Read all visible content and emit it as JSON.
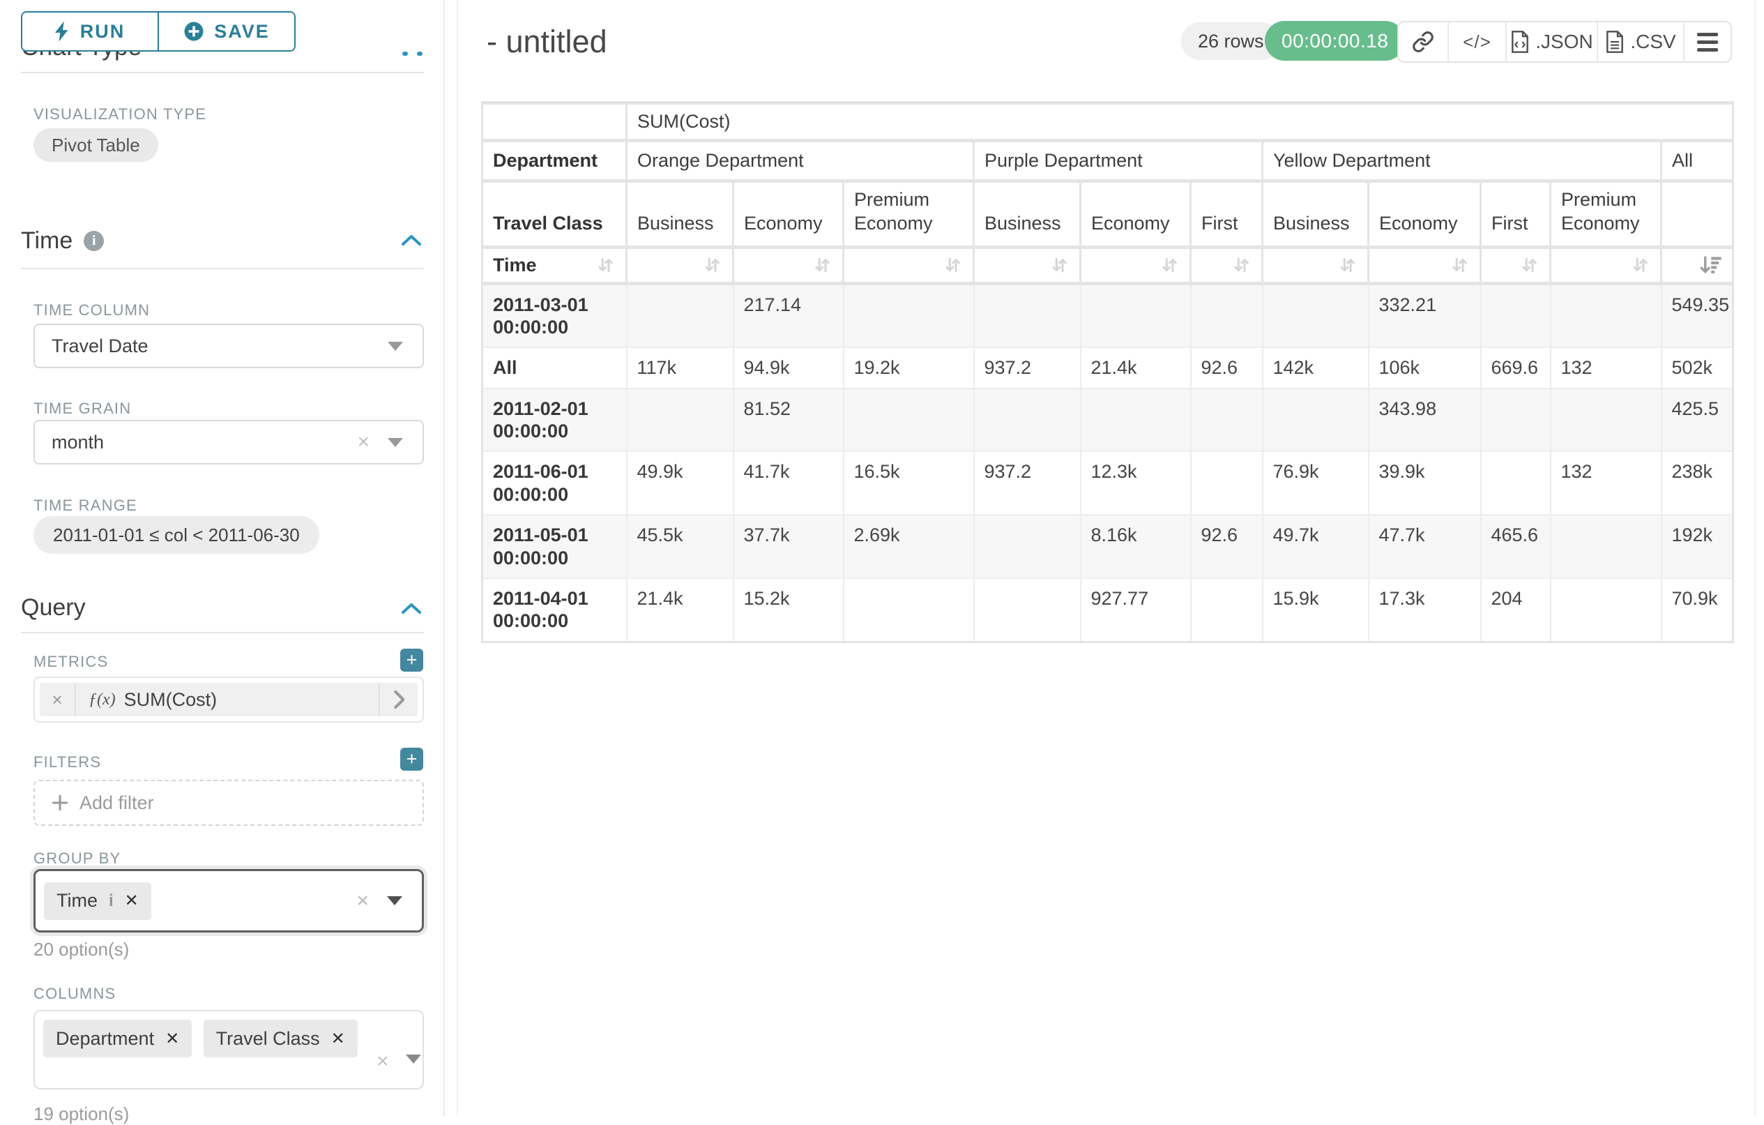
{
  "colors": {
    "accent_teal": "#2b7e98",
    "chevron_blue": "#2d93c0",
    "plus_teal": "#44889f",
    "timer_green": "#68bd8d"
  },
  "sidebar": {
    "run_label": "RUN",
    "save_label": "SAVE",
    "chart_type_heading": "Chart Type",
    "visualization": {
      "label": "VISUALIZATION TYPE",
      "value": "Pivot Table"
    },
    "time": {
      "heading": "Time",
      "time_column": {
        "label": "TIME COLUMN",
        "value": "Travel Date"
      },
      "time_grain": {
        "label": "TIME GRAIN",
        "value": "month"
      },
      "time_range": {
        "label": "TIME RANGE",
        "value": "2011-01-01 ≤ col < 2011-06-30"
      }
    },
    "query": {
      "heading": "Query",
      "metrics": {
        "label": "METRICS",
        "fx": "ƒ(x)",
        "value": "SUM(Cost)"
      },
      "filters": {
        "label": "FILTERS",
        "placeholder": "Add filter"
      },
      "group_by": {
        "label": "GROUP BY",
        "chips": [
          "Time"
        ],
        "hint": "20 option(s)"
      },
      "columns": {
        "label": "COLUMNS",
        "chips": [
          "Department",
          "Travel Class"
        ],
        "hint": "19 option(s)"
      }
    }
  },
  "header": {
    "title": "- untitled",
    "rows_badge": "26 rows",
    "timer": "00:00:00.18",
    "json_label": ".JSON",
    "csv_label": ".CSV"
  },
  "pivot": {
    "metric": "SUM(Cost)",
    "column_dimension_label": "Department",
    "class_dimension_label": "Travel Class",
    "row_dimension_label": "Time",
    "all_label": "All",
    "groups": [
      {
        "name": "Orange Department",
        "classes": [
          "Business",
          "Economy",
          "Premium Economy"
        ]
      },
      {
        "name": "Purple Department",
        "classes": [
          "Business",
          "Economy",
          "First"
        ]
      },
      {
        "name": "Yellow Department",
        "classes": [
          "Business",
          "Economy",
          "First",
          "Premium Economy"
        ]
      }
    ],
    "rows": [
      {
        "label": "2011-03-01 00:00:00",
        "values": [
          "",
          "217.14",
          "",
          "",
          "",
          "",
          "",
          "332.21",
          "",
          "",
          "549.35"
        ]
      },
      {
        "label": "All",
        "values": [
          "117k",
          "94.9k",
          "19.2k",
          "937.2",
          "21.4k",
          "92.6",
          "142k",
          "106k",
          "669.6",
          "132",
          "502k"
        ]
      },
      {
        "label": "2011-02-01 00:00:00",
        "values": [
          "",
          "81.52",
          "",
          "",
          "",
          "",
          "",
          "343.98",
          "",
          "",
          "425.5"
        ]
      },
      {
        "label": "2011-06-01 00:00:00",
        "values": [
          "49.9k",
          "41.7k",
          "16.5k",
          "937.2",
          "12.3k",
          "",
          "76.9k",
          "39.9k",
          "",
          "132",
          "238k"
        ]
      },
      {
        "label": "2011-05-01 00:00:00",
        "values": [
          "45.5k",
          "37.7k",
          "2.69k",
          "",
          "8.16k",
          "92.6",
          "49.7k",
          "47.7k",
          "465.6",
          "",
          "192k"
        ]
      },
      {
        "label": "2011-04-01 00:00:00",
        "values": [
          "21.4k",
          "15.2k",
          "",
          "",
          "927.77",
          "",
          "15.9k",
          "17.3k",
          "204",
          "",
          "70.9k"
        ]
      }
    ]
  }
}
